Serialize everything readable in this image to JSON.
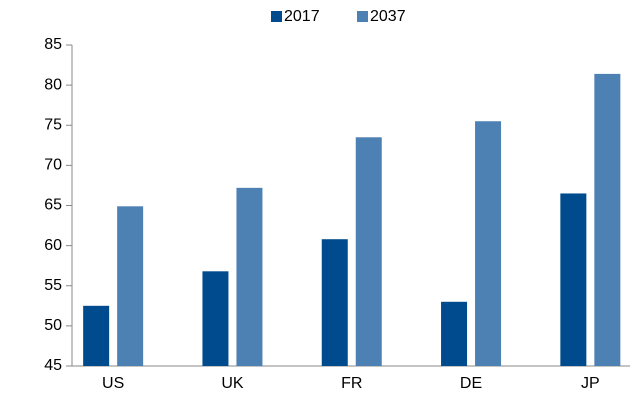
{
  "chart_data": {
    "type": "bar",
    "categories": [
      "US",
      "UK",
      "FR",
      "DE",
      "JP"
    ],
    "series": [
      {
        "name": "2017",
        "color": "#004b8d",
        "values": [
          52.5,
          56.8,
          60.8,
          53,
          66.5
        ]
      },
      {
        "name": "2037",
        "color": "#4d80b3",
        "values": [
          64.9,
          67.2,
          73.5,
          75.5,
          81.4
        ]
      }
    ],
    "ylim": [
      45,
      85
    ],
    "yticks": [
      45,
      50,
      55,
      60,
      65,
      70,
      75,
      80,
      85
    ],
    "grid": false,
    "legend": "top"
  }
}
